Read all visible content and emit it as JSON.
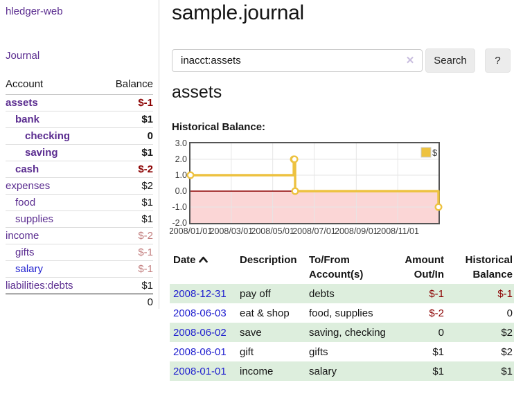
{
  "sidebar": {
    "brand": "hledger-web",
    "nav_journal": "Journal",
    "accounts": {
      "headers": [
        "Account",
        "Balance"
      ],
      "rows": [
        {
          "name": "assets",
          "indent": 1,
          "bold": true,
          "balance": "$-1"
        },
        {
          "name": "bank",
          "indent": 2,
          "bold": true,
          "balance": "$1"
        },
        {
          "name": "checking",
          "indent": 3,
          "bold": true,
          "balance": "0"
        },
        {
          "name": "saving",
          "indent": 3,
          "bold": true,
          "balance": "$1"
        },
        {
          "name": "cash",
          "indent": 2,
          "bold": true,
          "balance": "$-2"
        },
        {
          "name": "expenses",
          "indent": 1,
          "bold": false,
          "balance": "$2"
        },
        {
          "name": "food",
          "indent": 2,
          "bold": false,
          "balance": "$1"
        },
        {
          "name": "supplies",
          "indent": 2,
          "bold": false,
          "balance": "$1"
        },
        {
          "name": "income",
          "indent": 1,
          "bold": false,
          "balance": "$-2"
        },
        {
          "name": "gifts",
          "indent": 2,
          "bold": false,
          "balance": "$-1"
        },
        {
          "name": "salary",
          "indent": 2,
          "bold": false,
          "balance": "$-1",
          "link_style": "blue"
        },
        {
          "name": "liabilities:debts",
          "indent": 1,
          "bold": false,
          "balance": "$1"
        }
      ],
      "total": "0"
    }
  },
  "header": {
    "title": "sample.journal"
  },
  "search": {
    "value": "inacct:assets",
    "clear_icon": "✕",
    "button_label": "Search",
    "help_label": "?"
  },
  "account_page": {
    "title": "assets",
    "chart_heading": "Historical Balance:"
  },
  "chart_data": {
    "type": "line",
    "step": true,
    "title": "Historical Balance:",
    "legend": {
      "label": "$",
      "position": "top-right"
    },
    "ylim": [
      -2,
      3
    ],
    "y_ticks": [
      "3.0",
      "2.0",
      "1.0",
      "0.0",
      "-1.0",
      "-2.0"
    ],
    "x_ticks": [
      {
        "label": "2008/01/01",
        "t": 0.0
      },
      {
        "label": "2008/03/01",
        "t": 0.1644
      },
      {
        "label": "2008/05/01",
        "t": 0.3315
      },
      {
        "label": "2008/07/01",
        "t": 0.4986
      },
      {
        "label": "2008/09/01",
        "t": 0.6685
      },
      {
        "label": "2008/11/01",
        "t": 0.8356
      }
    ],
    "series": [
      {
        "name": "$",
        "color": "#edc240",
        "points": [
          {
            "date": "2008-01-01",
            "t": 0.0,
            "v": 1
          },
          {
            "date": "2008-06-01",
            "t": 0.4164,
            "v": 2
          },
          {
            "date": "2008-06-02",
            "t": 0.4192,
            "v": 2
          },
          {
            "date": "2008-06-03",
            "t": 0.4219,
            "v": 0
          },
          {
            "date": "2008-12-31",
            "t": 1.0,
            "v": -1
          }
        ]
      }
    ],
    "grid": true,
    "negative_region_fill": "#fbd6d6",
    "zero_line_color": "#8b0000",
    "plot_border_color": "#545454",
    "gridline_color": "#e6e6e6",
    "tick_label_color": "#3b3b3b"
  },
  "register": {
    "headers": [
      "Date",
      "Description",
      "To/From Account(s)",
      "Amount Out/In",
      "Historical Balance"
    ],
    "rows": [
      {
        "date": "2008-12-31",
        "description": "pay off",
        "accounts": "debts",
        "amount": "$-1",
        "balance": "$-1"
      },
      {
        "date": "2008-06-03",
        "description": "eat & shop",
        "accounts": "food, supplies",
        "amount": "$-2",
        "balance": "0"
      },
      {
        "date": "2008-06-02",
        "description": "save",
        "accounts": "saving, checking",
        "amount": "0",
        "balance": "$2"
      },
      {
        "date": "2008-06-01",
        "description": "gift",
        "accounts": "gifts",
        "amount": "$1",
        "balance": "$2"
      },
      {
        "date": "2008-01-01",
        "description": "income",
        "accounts": "salary",
        "amount": "$1",
        "balance": "$1"
      }
    ]
  }
}
